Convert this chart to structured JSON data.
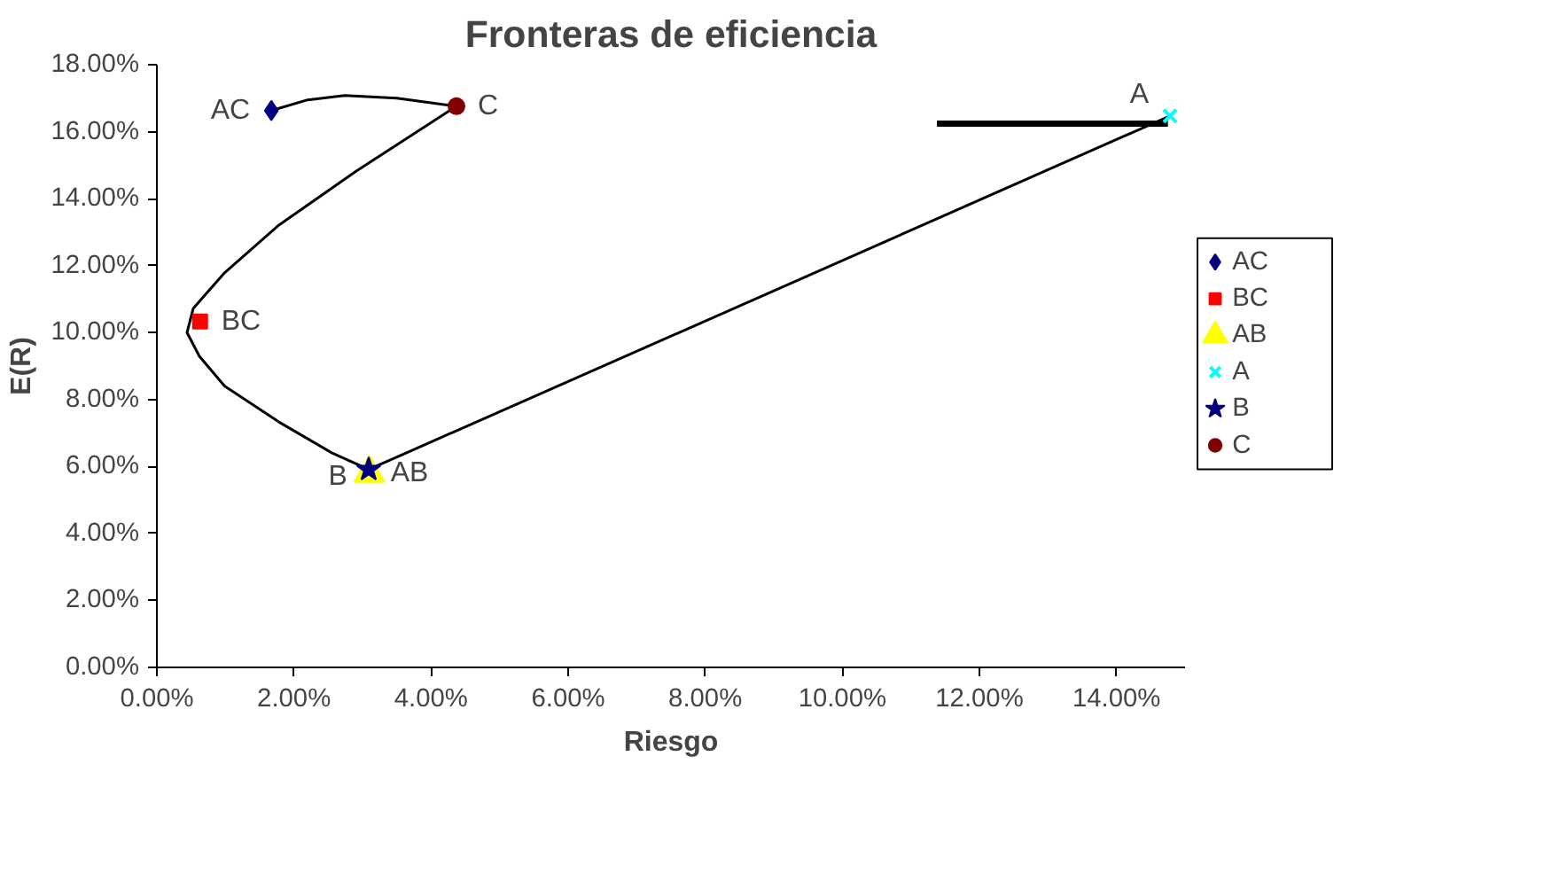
{
  "chart_data": {
    "type": "scatter",
    "title": "Fronteras de eficiencia",
    "xlabel": "Riesgo",
    "ylabel": "E(R)",
    "xlim": [
      0,
      0.15
    ],
    "ylim": [
      0,
      0.18
    ],
    "xticks": [
      {
        "value": 0,
        "label": "0.00%"
      },
      {
        "value": 0.02,
        "label": "2.00%"
      },
      {
        "value": 0.04,
        "label": "4.00%"
      },
      {
        "value": 0.06,
        "label": "6.00%"
      },
      {
        "value": 0.08,
        "label": "8.00%"
      },
      {
        "value": 0.1,
        "label": "10.00%"
      },
      {
        "value": 0.12,
        "label": "12.00%"
      },
      {
        "value": 0.14,
        "label": "14.00%"
      }
    ],
    "yticks": [
      {
        "value": 0,
        "label": "0.00%"
      },
      {
        "value": 0.02,
        "label": "2.00%"
      },
      {
        "value": 0.04,
        "label": "4.00%"
      },
      {
        "value": 0.06,
        "label": "6.00%"
      },
      {
        "value": 0.08,
        "label": "8.00%"
      },
      {
        "value": 0.1,
        "label": "10.00%"
      },
      {
        "value": 0.12,
        "label": "12.00%"
      },
      {
        "value": 0.14,
        "label": "14.00%"
      },
      {
        "value": 0.16,
        "label": "16.00%"
      },
      {
        "value": 0.18,
        "label": "18.00%"
      }
    ],
    "grid": false,
    "legend": "right",
    "series": [
      {
        "type": "line",
        "color": "#000000",
        "marker": "none",
        "x": [
          0.0167,
          0.022,
          0.0274,
          0.035,
          0.0437,
          0.029,
          0.0178,
          0.0099,
          0.0053,
          0.0044,
          0.0062,
          0.0099,
          0.0178,
          0.0255,
          0.0309,
          0.1478
        ],
        "values": [
          0.1663,
          0.1695,
          0.1708,
          0.17,
          0.1676,
          0.1481,
          0.1321,
          0.1179,
          0.1072,
          0.1,
          0.0929,
          0.084,
          0.0733,
          0.0641,
          0.0591,
          0.1647
        ]
      },
      {
        "type": "line",
        "color": "#000000",
        "marker": "none",
        "x": [
          0.1138,
          0.1475
        ],
        "values": [
          0.1624,
          0.1624
        ]
      },
      {
        "name": "AC",
        "color": "#000080",
        "marker": "diamond",
        "x": [
          0.0167
        ],
        "values": [
          0.1663
        ]
      },
      {
        "name": "BC",
        "color": "#ff0000",
        "marker": "square",
        "x": [
          0.0063
        ],
        "values": [
          0.1033
        ]
      },
      {
        "name": "AB",
        "color": "#ffff00",
        "marker": "triangle",
        "x": [
          0.031
        ],
        "values": [
          0.058
        ]
      },
      {
        "name": "A",
        "color": "#00ffff",
        "marker": "cross",
        "x": [
          0.1478
        ],
        "values": [
          0.1647
        ]
      },
      {
        "name": "B",
        "color": "#000080",
        "marker": "star",
        "x": [
          0.0309
        ],
        "values": [
          0.0591
        ]
      },
      {
        "name": "C",
        "color": "#800000",
        "marker": "circle",
        "x": [
          0.0437
        ],
        "values": [
          0.1676
        ]
      }
    ]
  }
}
